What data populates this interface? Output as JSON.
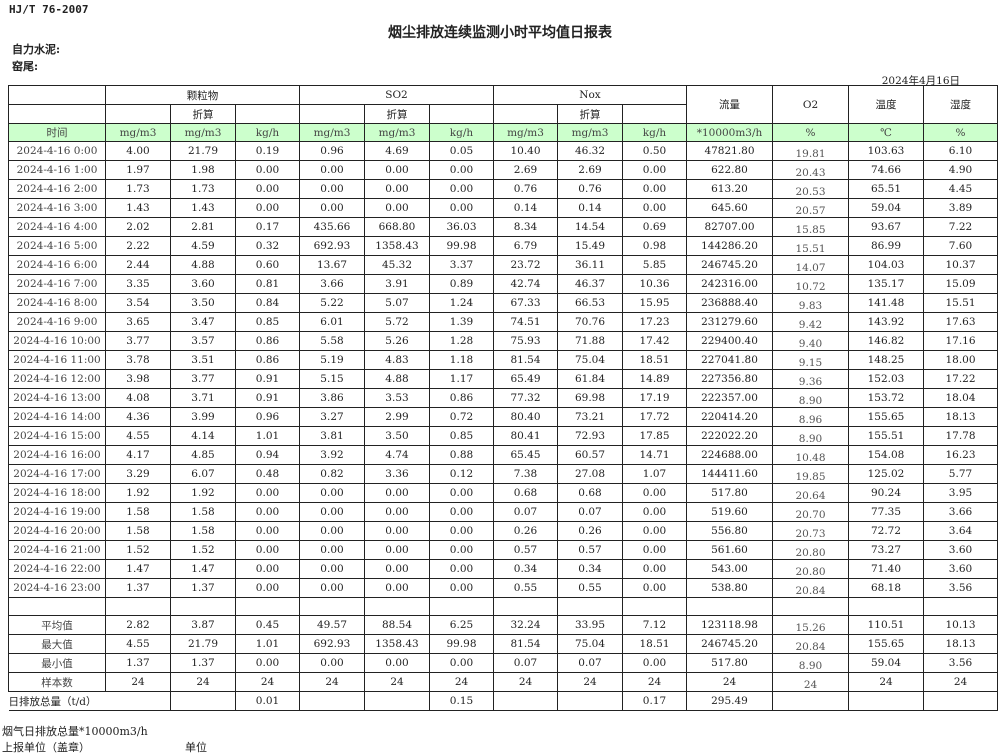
{
  "header": {
    "standard": "HJ/T  76-2007",
    "title": "烟尘排放连续监测小时平均值日报表",
    "company": "自力水泥:",
    "kiln": "窑尾:",
    "date": "2024年4月16日"
  },
  "table": {
    "groups": {
      "particulate": "颗粒物",
      "so2": "SO2",
      "nox": "Nox",
      "flow": "流量",
      "o2": "O2",
      "temp": "温度",
      "humidity": "湿度"
    },
    "converted": "折算",
    "units": [
      "时间",
      "mg/m3",
      "mg/m3",
      "kg/h",
      "mg/m3",
      "mg/m3",
      "kg/h",
      "mg/m3",
      "mg/m3",
      "kg/h",
      "*10000m3/h",
      "%",
      "℃",
      "%"
    ],
    "rows": [
      [
        "2024-4-16 0:00",
        "4.00",
        "21.79",
        "0.19",
        "0.96",
        "4.69",
        "0.05",
        "10.40",
        "46.32",
        "0.50",
        "47821.80",
        "19.81",
        "103.63",
        "6.10"
      ],
      [
        "2024-4-16 1:00",
        "1.97",
        "1.98",
        "0.00",
        "0.00",
        "0.00",
        "0.00",
        "2.69",
        "2.69",
        "0.00",
        "622.80",
        "20.43",
        "74.66",
        "4.90"
      ],
      [
        "2024-4-16 2:00",
        "1.73",
        "1.73",
        "0.00",
        "0.00",
        "0.00",
        "0.00",
        "0.76",
        "0.76",
        "0.00",
        "613.20",
        "20.53",
        "65.51",
        "4.45"
      ],
      [
        "2024-4-16 3:00",
        "1.43",
        "1.43",
        "0.00",
        "0.00",
        "0.00",
        "0.00",
        "0.14",
        "0.14",
        "0.00",
        "645.60",
        "20.57",
        "59.04",
        "3.89"
      ],
      [
        "2024-4-16 4:00",
        "2.02",
        "2.81",
        "0.17",
        "435.66",
        "668.80",
        "36.03",
        "8.34",
        "14.54",
        "0.69",
        "82707.00",
        "15.85",
        "93.67",
        "7.22"
      ],
      [
        "2024-4-16 5:00",
        "2.22",
        "4.59",
        "0.32",
        "692.93",
        "1358.43",
        "99.98",
        "6.79",
        "15.49",
        "0.98",
        "144286.20",
        "15.51",
        "86.99",
        "7.60"
      ],
      [
        "2024-4-16 6:00",
        "2.44",
        "4.88",
        "0.60",
        "13.67",
        "45.32",
        "3.37",
        "23.72",
        "36.11",
        "5.85",
        "246745.20",
        "14.07",
        "104.03",
        "10.37"
      ],
      [
        "2024-4-16 7:00",
        "3.35",
        "3.60",
        "0.81",
        "3.66",
        "3.91",
        "0.89",
        "42.74",
        "46.37",
        "10.36",
        "242316.00",
        "10.72",
        "135.17",
        "15.09"
      ],
      [
        "2024-4-16 8:00",
        "3.54",
        "3.50",
        "0.84",
        "5.22",
        "5.07",
        "1.24",
        "67.33",
        "66.53",
        "15.95",
        "236888.40",
        "9.83",
        "141.48",
        "15.51"
      ],
      [
        "2024-4-16 9:00",
        "3.65",
        "3.47",
        "0.85",
        "6.01",
        "5.72",
        "1.39",
        "74.51",
        "70.76",
        "17.23",
        "231279.60",
        "9.42",
        "143.92",
        "17.63"
      ],
      [
        "2024-4-16 10:00",
        "3.77",
        "3.57",
        "0.86",
        "5.58",
        "5.26",
        "1.28",
        "75.93",
        "71.88",
        "17.42",
        "229400.40",
        "9.40",
        "146.82",
        "17.16"
      ],
      [
        "2024-4-16 11:00",
        "3.78",
        "3.51",
        "0.86",
        "5.19",
        "4.83",
        "1.18",
        "81.54",
        "75.04",
        "18.51",
        "227041.80",
        "9.15",
        "148.25",
        "18.00"
      ],
      [
        "2024-4-16 12:00",
        "3.98",
        "3.77",
        "0.91",
        "5.15",
        "4.88",
        "1.17",
        "65.49",
        "61.84",
        "14.89",
        "227356.80",
        "9.36",
        "152.03",
        "17.22"
      ],
      [
        "2024-4-16 13:00",
        "4.08",
        "3.71",
        "0.91",
        "3.86",
        "3.53",
        "0.86",
        "77.32",
        "69.98",
        "17.19",
        "222357.00",
        "8.90",
        "153.72",
        "18.04"
      ],
      [
        "2024-4-16 14:00",
        "4.36",
        "3.99",
        "0.96",
        "3.27",
        "2.99",
        "0.72",
        "80.40",
        "73.21",
        "17.72",
        "220414.20",
        "8.96",
        "155.65",
        "18.13"
      ],
      [
        "2024-4-16 15:00",
        "4.55",
        "4.14",
        "1.01",
        "3.81",
        "3.50",
        "0.85",
        "80.41",
        "72.93",
        "17.85",
        "222022.20",
        "8.90",
        "155.51",
        "17.78"
      ],
      [
        "2024-4-16 16:00",
        "4.17",
        "4.85",
        "0.94",
        "3.92",
        "4.74",
        "0.88",
        "65.45",
        "60.57",
        "14.71",
        "224688.00",
        "10.48",
        "154.08",
        "16.23"
      ],
      [
        "2024-4-16 17:00",
        "3.29",
        "6.07",
        "0.48",
        "0.82",
        "3.36",
        "0.12",
        "7.38",
        "27.08",
        "1.07",
        "144411.60",
        "19.85",
        "125.02",
        "5.77"
      ],
      [
        "2024-4-16 18:00",
        "1.92",
        "1.92",
        "0.00",
        "0.00",
        "0.00",
        "0.00",
        "0.68",
        "0.68",
        "0.00",
        "517.80",
        "20.64",
        "90.24",
        "3.95"
      ],
      [
        "2024-4-16 19:00",
        "1.58",
        "1.58",
        "0.00",
        "0.00",
        "0.00",
        "0.00",
        "0.07",
        "0.07",
        "0.00",
        "519.60",
        "20.70",
        "77.35",
        "3.66"
      ],
      [
        "2024-4-16 20:00",
        "1.58",
        "1.58",
        "0.00",
        "0.00",
        "0.00",
        "0.00",
        "0.26",
        "0.26",
        "0.00",
        "556.80",
        "20.73",
        "72.72",
        "3.64"
      ],
      [
        "2024-4-16 21:00",
        "1.52",
        "1.52",
        "0.00",
        "0.00",
        "0.00",
        "0.00",
        "0.57",
        "0.57",
        "0.00",
        "561.60",
        "20.80",
        "73.27",
        "3.60"
      ],
      [
        "2024-4-16 22:00",
        "1.47",
        "1.47",
        "0.00",
        "0.00",
        "0.00",
        "0.00",
        "0.34",
        "0.34",
        "0.00",
        "543.00",
        "20.80",
        "71.40",
        "3.60"
      ],
      [
        "2024-4-16 23:00",
        "1.37",
        "1.37",
        "0.00",
        "0.00",
        "0.00",
        "0.00",
        "0.55",
        "0.55",
        "0.00",
        "538.80",
        "20.84",
        "68.18",
        "3.56"
      ]
    ],
    "summary": [
      [
        "平均值",
        "2.82",
        "3.87",
        "0.45",
        "49.57",
        "88.54",
        "6.25",
        "32.24",
        "33.95",
        "7.12",
        "123118.98",
        "15.26",
        "110.51",
        "10.13"
      ],
      [
        "最大值",
        "4.55",
        "21.79",
        "1.01",
        "692.93",
        "1358.43",
        "99.98",
        "81.54",
        "75.04",
        "18.51",
        "246745.20",
        "20.84",
        "155.65",
        "18.13"
      ],
      [
        "最小值",
        "1.37",
        "1.37",
        "0.00",
        "0.00",
        "0.00",
        "0.00",
        "0.07",
        "0.07",
        "0.00",
        "517.80",
        "8.90",
        "59.04",
        "3.56"
      ],
      [
        "样本数",
        "24",
        "24",
        "24",
        "24",
        "24",
        "24",
        "24",
        "24",
        "24",
        "24",
        "24",
        "24",
        "24"
      ]
    ],
    "daily_total": {
      "label": "日排放总量（t/d）",
      "particulate_kg": "0.01",
      "so2_kg": "0.15",
      "nox_kg": "0.17",
      "flow": "295.49"
    }
  },
  "footer": {
    "flue_gas_total": "烟气日排放总量*10000m3/h",
    "reporting_unit": "上报单位（盖章）",
    "unit": "单位"
  }
}
